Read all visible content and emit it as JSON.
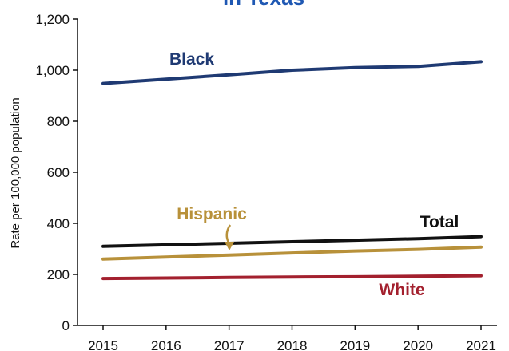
{
  "chart_data": {
    "type": "line",
    "title": "in Texas",
    "xlabel": "",
    "ylabel": "Rate per 100,000 population",
    "x": [
      "2015",
      "2016",
      "2017",
      "2018",
      "2019",
      "2020",
      "2021"
    ],
    "ylim": [
      0,
      1200
    ],
    "yticks": [
      0,
      200,
      400,
      600,
      800,
      1000,
      1200
    ],
    "ytick_labels": [
      "0",
      "200",
      "400",
      "600",
      "800",
      "1,000",
      "1,200"
    ],
    "grid": false,
    "legend": "inline labels",
    "series": [
      {
        "name": "Black",
        "color": "#1f3a73",
        "values": [
          948,
          965,
          982,
          1000,
          1010,
          1015,
          1033
        ]
      },
      {
        "name": "Total",
        "color": "#111111",
        "values": [
          310,
          316,
          322,
          328,
          334,
          340,
          348
        ]
      },
      {
        "name": "Hispanic",
        "color": "#b8913a",
        "values": [
          260,
          268,
          276,
          284,
          292,
          298,
          307
        ]
      },
      {
        "name": "White",
        "color": "#a3202e",
        "values": [
          184,
          186,
          188,
          190,
          191,
          193,
          195
        ]
      }
    ]
  }
}
